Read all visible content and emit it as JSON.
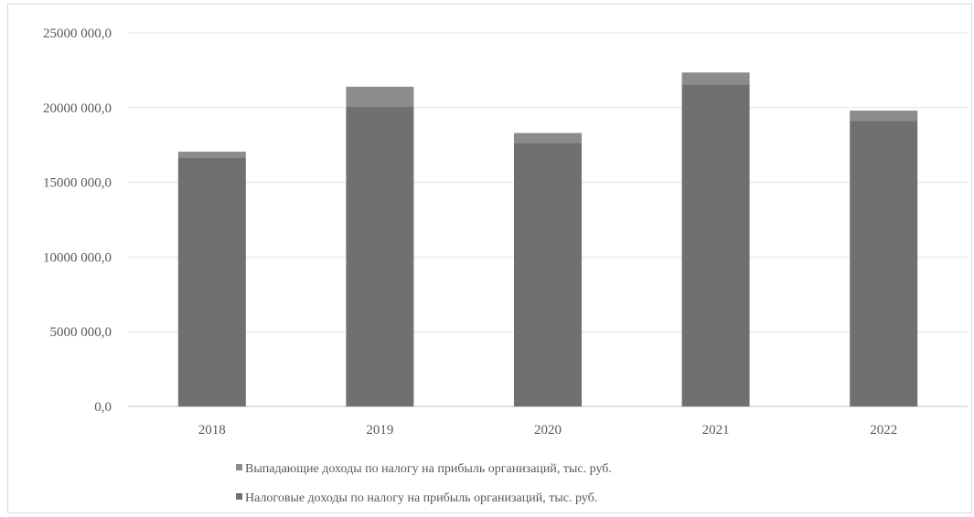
{
  "chart_data": {
    "type": "bar",
    "stacked": true,
    "categories": [
      "2018",
      "2019",
      "2020",
      "2021",
      "2022"
    ],
    "series": [
      {
        "name": "Налоговые доходы по налогу на прибыль организаций,  тыс. руб.",
        "color": "#707070",
        "values": [
          16650000,
          20050000,
          17650000,
          21550000,
          19100000
        ]
      },
      {
        "name": "Выпадающие доходы по налогу на прибыль организаций,  тыс. руб.",
        "color": "#8c8c8c",
        "values": [
          400000,
          1350000,
          650000,
          800000,
          700000
        ]
      }
    ],
    "yticks": [
      "0,0",
      "5000 000,0",
      "10000 000,0",
      "15000 000,0",
      "20000 000,0",
      "25000 000,0"
    ],
    "ylim": [
      0,
      25000000
    ],
    "grid": true,
    "legend": "bottom",
    "title": "",
    "xlabel": "",
    "ylabel": ""
  }
}
